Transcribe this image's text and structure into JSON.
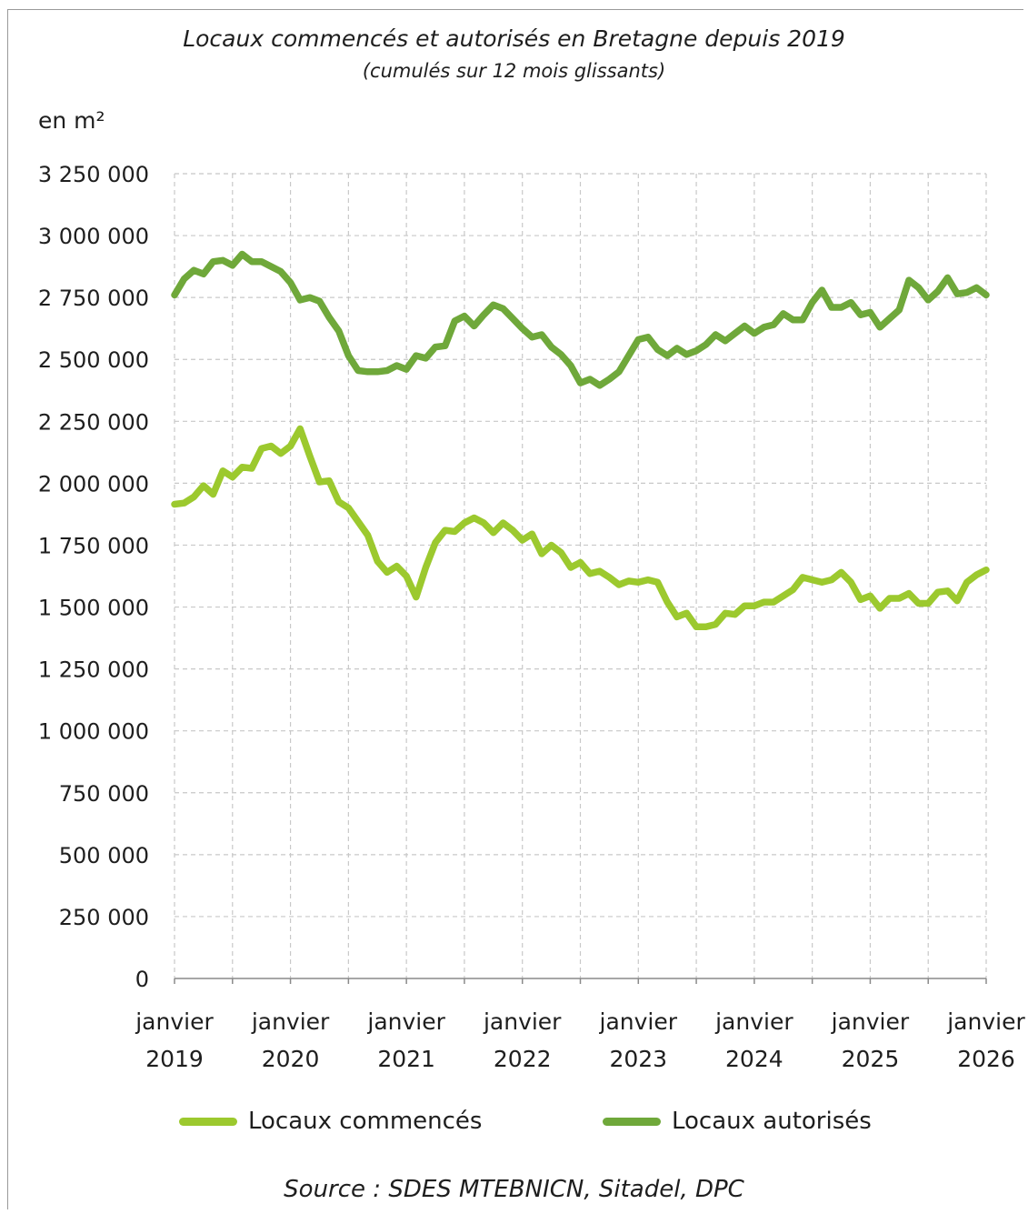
{
  "chart_data": {
    "type": "line",
    "title": "Locaux commencés et autorisés en Bretagne depuis 2019",
    "subtitle": "(cumulés sur 12 mois glissants)",
    "ylabel": "en m²",
    "xlabel": "",
    "ylim": [
      0,
      3250000
    ],
    "yticks": [
      0,
      250000,
      500000,
      750000,
      1000000,
      1250000,
      1500000,
      1750000,
      2000000,
      2250000,
      2500000,
      2750000,
      3000000,
      3250000
    ],
    "ytick_labels": [
      "0",
      "250 000",
      "500 000",
      "750 000",
      "1 000 000",
      "1 250 000",
      "1 500 000",
      "1 750 000",
      "2 000 000",
      "2 250 000",
      "2 500 000",
      "2 750 000",
      "3 000 000",
      "3 250 000"
    ],
    "x_range": [
      "2019-01",
      "2026-01"
    ],
    "xticks": [
      {
        "month": "2019-01",
        "line1": "janvier",
        "line2": "2019"
      },
      {
        "month": "2020-01",
        "line1": "janvier",
        "line2": "2020"
      },
      {
        "month": "2021-01",
        "line1": "janvier",
        "line2": "2021"
      },
      {
        "month": "2022-01",
        "line1": "janvier",
        "line2": "2022"
      },
      {
        "month": "2023-01",
        "line1": "janvier",
        "line2": "2023"
      },
      {
        "month": "2024-01",
        "line1": "janvier",
        "line2": "2024"
      },
      {
        "month": "2025-01",
        "line1": "janvier",
        "line2": "2025"
      },
      {
        "month": "2026-01",
        "line1": "janvier",
        "line2": "2026"
      }
    ],
    "grid": true,
    "legend_position": "bottom",
    "series": [
      {
        "name": "Locaux commencés",
        "color": "#9cc92e",
        "points": [
          [
            "2019-01",
            1915000
          ],
          [
            "2019-02",
            1920000
          ],
          [
            "2019-03",
            1945000
          ],
          [
            "2019-04",
            1990000
          ],
          [
            "2019-05",
            1955000
          ],
          [
            "2019-06",
            2050000
          ],
          [
            "2019-07",
            2025000
          ],
          [
            "2019-08",
            2065000
          ],
          [
            "2019-09",
            2060000
          ],
          [
            "2019-10",
            2140000
          ],
          [
            "2019-11",
            2150000
          ],
          [
            "2019-12",
            2120000
          ],
          [
            "2020-01",
            2150000
          ],
          [
            "2020-02",
            2220000
          ],
          [
            "2020-03",
            2110000
          ],
          [
            "2020-04",
            2005000
          ],
          [
            "2020-05",
            2010000
          ],
          [
            "2020-06",
            1925000
          ],
          [
            "2020-07",
            1900000
          ],
          [
            "2020-08",
            1845000
          ],
          [
            "2020-09",
            1790000
          ],
          [
            "2020-10",
            1685000
          ],
          [
            "2020-11",
            1640000
          ],
          [
            "2020-12",
            1665000
          ],
          [
            "2021-01",
            1625000
          ],
          [
            "2021-02",
            1540000
          ],
          [
            "2021-03",
            1660000
          ],
          [
            "2021-04",
            1760000
          ],
          [
            "2021-05",
            1810000
          ],
          [
            "2021-06",
            1805000
          ],
          [
            "2021-07",
            1840000
          ],
          [
            "2021-08",
            1860000
          ],
          [
            "2021-09",
            1840000
          ],
          [
            "2021-10",
            1800000
          ],
          [
            "2021-11",
            1840000
          ],
          [
            "2021-12",
            1810000
          ],
          [
            "2022-01",
            1770000
          ],
          [
            "2022-02",
            1795000
          ],
          [
            "2022-03",
            1715000
          ],
          [
            "2022-04",
            1750000
          ],
          [
            "2022-05",
            1720000
          ],
          [
            "2022-06",
            1660000
          ],
          [
            "2022-07",
            1680000
          ],
          [
            "2022-08",
            1635000
          ],
          [
            "2022-09",
            1645000
          ],
          [
            "2022-10",
            1620000
          ],
          [
            "2022-11",
            1590000
          ],
          [
            "2022-12",
            1605000
          ],
          [
            "2023-01",
            1600000
          ],
          [
            "2023-02",
            1610000
          ],
          [
            "2023-03",
            1600000
          ],
          [
            "2023-04",
            1520000
          ],
          [
            "2023-05",
            1460000
          ],
          [
            "2023-06",
            1475000
          ],
          [
            "2023-07",
            1420000
          ],
          [
            "2023-08",
            1420000
          ],
          [
            "2023-09",
            1430000
          ],
          [
            "2023-10",
            1475000
          ],
          [
            "2023-11",
            1470000
          ],
          [
            "2023-12",
            1505000
          ],
          [
            "2024-01",
            1505000
          ],
          [
            "2024-02",
            1520000
          ],
          [
            "2024-03",
            1520000
          ],
          [
            "2024-04",
            1545000
          ],
          [
            "2024-05",
            1570000
          ],
          [
            "2024-06",
            1620000
          ],
          [
            "2024-07",
            1610000
          ],
          [
            "2024-08",
            1600000
          ],
          [
            "2024-09",
            1610000
          ],
          [
            "2024-10",
            1640000
          ],
          [
            "2024-11",
            1600000
          ],
          [
            "2024-12",
            1530000
          ],
          [
            "2025-01",
            1545000
          ],
          [
            "2025-02",
            1495000
          ],
          [
            "2025-03",
            1535000
          ],
          [
            "2025-04",
            1535000
          ],
          [
            "2025-05",
            1555000
          ],
          [
            "2025-06",
            1515000
          ],
          [
            "2025-07",
            1515000
          ],
          [
            "2025-08",
            1560000
          ],
          [
            "2025-09",
            1565000
          ],
          [
            "2025-10",
            1525000
          ],
          [
            "2025-11",
            1600000
          ],
          [
            "2025-12",
            1630000
          ],
          [
            "2026-01",
            1650000
          ]
        ]
      },
      {
        "name": "Locaux autorisés",
        "color": "#6fa83a",
        "points": [
          [
            "2019-01",
            2760000
          ],
          [
            "2019-02",
            2825000
          ],
          [
            "2019-03",
            2860000
          ],
          [
            "2019-04",
            2845000
          ],
          [
            "2019-05",
            2895000
          ],
          [
            "2019-06",
            2900000
          ],
          [
            "2019-07",
            2880000
          ],
          [
            "2019-08",
            2925000
          ],
          [
            "2019-09",
            2895000
          ],
          [
            "2019-10",
            2895000
          ],
          [
            "2019-11",
            2875000
          ],
          [
            "2019-12",
            2855000
          ],
          [
            "2020-01",
            2810000
          ],
          [
            "2020-02",
            2740000
          ],
          [
            "2020-03",
            2750000
          ],
          [
            "2020-04",
            2735000
          ],
          [
            "2020-05",
            2670000
          ],
          [
            "2020-06",
            2615000
          ],
          [
            "2020-07",
            2515000
          ],
          [
            "2020-08",
            2455000
          ],
          [
            "2020-09",
            2450000
          ],
          [
            "2020-10",
            2450000
          ],
          [
            "2020-11",
            2455000
          ],
          [
            "2020-12",
            2475000
          ],
          [
            "2021-01",
            2460000
          ],
          [
            "2021-02",
            2515000
          ],
          [
            "2021-03",
            2505000
          ],
          [
            "2021-04",
            2550000
          ],
          [
            "2021-05",
            2555000
          ],
          [
            "2021-06",
            2655000
          ],
          [
            "2021-07",
            2675000
          ],
          [
            "2021-08",
            2635000
          ],
          [
            "2021-09",
            2680000
          ],
          [
            "2021-10",
            2720000
          ],
          [
            "2021-11",
            2705000
          ],
          [
            "2021-12",
            2665000
          ],
          [
            "2022-01",
            2625000
          ],
          [
            "2022-02",
            2590000
          ],
          [
            "2022-03",
            2600000
          ],
          [
            "2022-04",
            2550000
          ],
          [
            "2022-05",
            2520000
          ],
          [
            "2022-06",
            2475000
          ],
          [
            "2022-07",
            2405000
          ],
          [
            "2022-08",
            2420000
          ],
          [
            "2022-09",
            2395000
          ],
          [
            "2022-10",
            2420000
          ],
          [
            "2022-11",
            2450000
          ],
          [
            "2022-12",
            2515000
          ],
          [
            "2023-01",
            2580000
          ],
          [
            "2023-02",
            2590000
          ],
          [
            "2023-03",
            2540000
          ],
          [
            "2023-04",
            2515000
          ],
          [
            "2023-05",
            2545000
          ],
          [
            "2023-06",
            2520000
          ],
          [
            "2023-07",
            2535000
          ],
          [
            "2023-08",
            2560000
          ],
          [
            "2023-09",
            2600000
          ],
          [
            "2023-10",
            2575000
          ],
          [
            "2023-11",
            2605000
          ],
          [
            "2023-12",
            2635000
          ],
          [
            "2024-01",
            2605000
          ],
          [
            "2024-02",
            2630000
          ],
          [
            "2024-03",
            2640000
          ],
          [
            "2024-04",
            2685000
          ],
          [
            "2024-05",
            2660000
          ],
          [
            "2024-06",
            2660000
          ],
          [
            "2024-07",
            2730000
          ],
          [
            "2024-08",
            2780000
          ],
          [
            "2024-09",
            2710000
          ],
          [
            "2024-10",
            2710000
          ],
          [
            "2024-11",
            2730000
          ],
          [
            "2024-12",
            2680000
          ],
          [
            "2025-01",
            2690000
          ],
          [
            "2025-02",
            2630000
          ],
          [
            "2025-03",
            2665000
          ],
          [
            "2025-04",
            2700000
          ],
          [
            "2025-05",
            2820000
          ],
          [
            "2025-06",
            2790000
          ],
          [
            "2025-07",
            2740000
          ],
          [
            "2025-08",
            2775000
          ],
          [
            "2025-09",
            2830000
          ],
          [
            "2025-10",
            2765000
          ],
          [
            "2025-11",
            2770000
          ],
          [
            "2025-12",
            2790000
          ],
          [
            "2026-01",
            2760000
          ]
        ]
      }
    ]
  },
  "source": "Source : SDES MTEBNICN, Sitadel, DPC"
}
